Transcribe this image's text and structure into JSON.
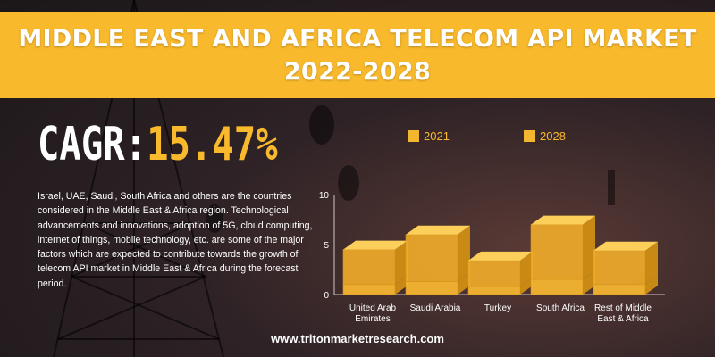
{
  "banner": {
    "title_line1": "MIDDLE EAST AND AFRICA TELECOM API MARKET",
    "title_line2": "2022-2028"
  },
  "cagr": {
    "label": "CAGR:",
    "value": "15.47%"
  },
  "description": "Israel, UAE, Saudi, South Africa and others are the countries considered in the Middle East & Africa region. Technological advancements and innovations, adoption of 5G, cloud computing, internet of things, mobile technology, etc. are some of the major factors which are expected to contribute towards the growth of telecom API market in Middle East & Africa during the forecast period.",
  "footer": {
    "website": "www.tritonmarketresearch.com"
  },
  "colors": {
    "accent": "#f9b92c",
    "bar_2021": "#f4b531",
    "bar_2028": "#f4b531"
  },
  "chart_data": {
    "type": "bar",
    "stacked": true,
    "three_d": true,
    "categories": [
      "United Arab Emirates",
      "Saudi Arabia",
      "Turkey",
      "South Africa",
      "Rest of Middle East & Africa"
    ],
    "category_lines": [
      [
        "United Arab",
        "Emirates"
      ],
      [
        "Saudi Arabia"
      ],
      [
        "Turkey"
      ],
      [
        "South Africa"
      ],
      [
        "Rest of Middle",
        "East & Africa"
      ]
    ],
    "series": [
      {
        "name": "2021",
        "values": [
          1.0,
          1.3,
          0.8,
          1.5,
          1.0
        ]
      },
      {
        "name": "2028",
        "values": [
          3.5,
          4.7,
          2.6,
          5.5,
          3.4
        ]
      }
    ],
    "yticks": [
      0,
      5,
      10
    ],
    "ylim": [
      0,
      10
    ],
    "legend_position": "top",
    "grid": false
  }
}
